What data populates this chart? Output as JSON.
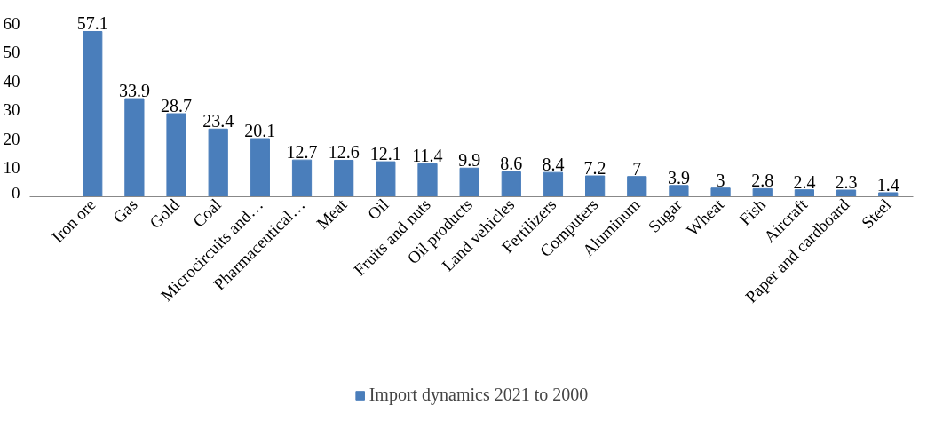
{
  "chart_data": {
    "type": "bar",
    "categories": [
      "Iron ore",
      "Gas",
      "Gold",
      "Coal",
      "Microcircuits and…",
      "Pharmaceutical…",
      "Meat",
      "Oil",
      "Fruits and nuts",
      "Oil products",
      "Land vehicles",
      "Fertilizers",
      "Computers",
      "Aluminum",
      "Sugar",
      "Wheat",
      "Fish",
      "Aircraft",
      "Paper and cardboard",
      "Steel"
    ],
    "series": [
      {
        "name": "Import dynamics 2021 to 2000",
        "color": "#4a7ebb",
        "values": [
          57.1,
          33.9,
          28.7,
          23.4,
          20.1,
          12.7,
          12.6,
          12.1,
          11.4,
          9.9,
          8.6,
          8.4,
          7.2,
          7,
          3.9,
          3,
          2.8,
          2.4,
          2.3,
          1.4
        ]
      }
    ],
    "ylim": [
      0,
      60
    ],
    "yticks": [
      0,
      10,
      20,
      30,
      40,
      50,
      60
    ],
    "data_labels": true,
    "grid": false,
    "legend": "bottom"
  }
}
